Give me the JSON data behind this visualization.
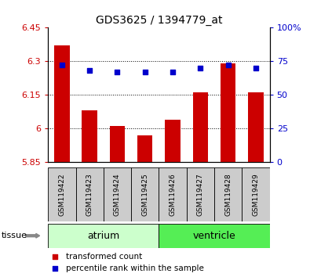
{
  "title": "GDS3625 / 1394779_at",
  "samples": [
    "GSM119422",
    "GSM119423",
    "GSM119424",
    "GSM119425",
    "GSM119426",
    "GSM119427",
    "GSM119428",
    "GSM119429"
  ],
  "transformed_counts": [
    6.37,
    6.08,
    6.01,
    5.97,
    6.04,
    6.16,
    6.29,
    6.16
  ],
  "percentile_ranks": [
    72,
    68,
    67,
    67,
    67,
    70,
    72,
    70
  ],
  "ylim_left": [
    5.85,
    6.45
  ],
  "ylim_right": [
    0,
    100
  ],
  "yticks_left": [
    5.85,
    6.0,
    6.15,
    6.3,
    6.45
  ],
  "yticks_right": [
    0,
    25,
    50,
    75,
    100
  ],
  "ytick_labels_left": [
    "5.85",
    "6",
    "6.15",
    "6.3",
    "6.45"
  ],
  "ytick_labels_right": [
    "0",
    "25",
    "50",
    "75",
    "100%"
  ],
  "bar_color": "#cc0000",
  "dot_color": "#0000cc",
  "bar_bottom": 5.85,
  "grid_lines": [
    6.0,
    6.15,
    6.3
  ],
  "tissue_groups": [
    {
      "label": "atrium",
      "start": 0,
      "end": 4,
      "color": "#ccffcc"
    },
    {
      "label": "ventricle",
      "start": 4,
      "end": 8,
      "color": "#55ee55"
    }
  ],
  "legend_items": [
    {
      "label": "transformed count",
      "color": "#cc0000"
    },
    {
      "label": "percentile rank within the sample",
      "color": "#0000cc"
    }
  ],
  "tissue_label": "tissue",
  "tick_label_color_left": "#cc0000",
  "tick_label_color_right": "#0000cc",
  "sample_box_color": "#cccccc",
  "arrow_color": "#888888"
}
